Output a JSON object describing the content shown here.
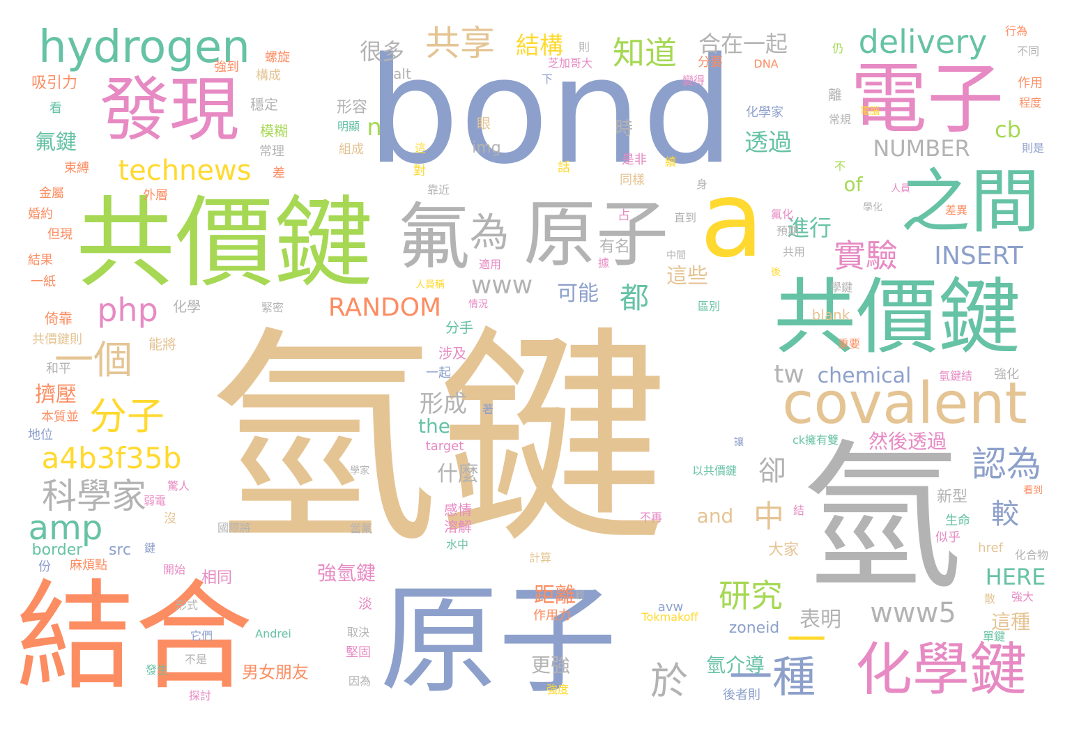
{
  "palette": {
    "tan": "#e5c494",
    "blue": "#8da0cb",
    "orange": "#fc8d62",
    "green": "#66c2a5",
    "pink": "#e78ac3",
    "lime": "#a6d854",
    "yellow": "#ffd92f",
    "gray": "#b3b3b3"
  },
  "words": [
    {
      "text": "氫鍵",
      "color": "tan"
    },
    {
      "text": "bond",
      "color": "blue"
    },
    {
      "text": "原子",
      "color": "blue"
    },
    {
      "text": "氫",
      "color": "gray"
    },
    {
      "text": "共價鍵",
      "color": "lime"
    },
    {
      "text": "共價鍵",
      "color": "green"
    },
    {
      "text": "結合",
      "color": "orange"
    },
    {
      "text": "a",
      "color": "yellow"
    },
    {
      "text": "原子",
      "color": "gray"
    },
    {
      "text": "氟",
      "color": "gray"
    },
    {
      "text": "電子",
      "color": "pink"
    },
    {
      "text": "發現",
      "color": "pink"
    },
    {
      "text": "之間",
      "color": "green"
    },
    {
      "text": "化學鍵",
      "color": "pink"
    },
    {
      "text": "covalent",
      "color": "tan"
    },
    {
      "text": "hydrogen",
      "color": "green"
    },
    {
      "text": "一種",
      "color": "blue"
    },
    {
      "text": "一",
      "color": "yellow"
    },
    {
      "text": "為",
      "color": "gray"
    },
    {
      "text": "一個",
      "color": "tan"
    },
    {
      "text": "分子",
      "color": "yellow"
    },
    {
      "text": "科學家",
      "color": "gray"
    },
    {
      "text": "amp",
      "color": "green"
    },
    {
      "text": "technews",
      "color": "yellow"
    },
    {
      "text": "php",
      "color": "pink"
    },
    {
      "text": "a4b3f35b",
      "color": "yellow"
    },
    {
      "text": "共享",
      "color": "tan"
    },
    {
      "text": "知道",
      "color": "lime"
    },
    {
      "text": "delivery",
      "color": "green"
    },
    {
      "text": "實驗",
      "color": "pink"
    },
    {
      "text": "認為",
      "color": "blue"
    },
    {
      "text": "研究",
      "color": "lime"
    },
    {
      "text": "於",
      "color": "gray"
    },
    {
      "text": "www5",
      "color": "gray"
    },
    {
      "text": "RANDOM",
      "color": "orange"
    },
    {
      "text": "INSERT",
      "color": "blue"
    },
    {
      "text": "NUMBER",
      "color": "gray"
    },
    {
      "text": "www",
      "color": "gray"
    },
    {
      "text": "中",
      "color": "tan"
    },
    {
      "text": "卻",
      "color": "gray"
    },
    {
      "text": "較",
      "color": "blue"
    },
    {
      "text": "都",
      "color": "green"
    },
    {
      "text": "tw",
      "color": "gray"
    },
    {
      "text": "chemical",
      "color": "blue"
    },
    {
      "text": "cb",
      "color": "lime"
    },
    {
      "text": "n",
      "color": "lime"
    },
    {
      "text": "透過",
      "color": "green"
    },
    {
      "text": "進行",
      "color": "green"
    },
    {
      "text": "結構",
      "color": "yellow"
    },
    {
      "text": "很多",
      "color": "gray"
    },
    {
      "text": "合在一起",
      "color": "gray"
    },
    {
      "text": "形成",
      "color": "gray"
    },
    {
      "text": "可能",
      "color": "blue"
    },
    {
      "text": "這些",
      "color": "tan"
    },
    {
      "text": "氟鍵",
      "color": "green"
    },
    {
      "text": "擠壓",
      "color": "orange"
    },
    {
      "text": "the",
      "color": "green"
    },
    {
      "text": "of",
      "color": "lime"
    },
    {
      "text": "然後透過",
      "color": "pink"
    },
    {
      "text": "什麼",
      "color": "gray"
    },
    {
      "text": "HERE",
      "color": "green"
    },
    {
      "text": "表明",
      "color": "gray"
    },
    {
      "text": "距離",
      "color": "orange"
    },
    {
      "text": "強氫鍵",
      "color": "pink"
    },
    {
      "text": "氫介導",
      "color": "green"
    },
    {
      "text": "更強",
      "color": "gray"
    },
    {
      "text": "男女朋友",
      "color": "orange"
    },
    {
      "text": "這種",
      "color": "tan"
    },
    {
      "text": "zoneid",
      "color": "blue"
    },
    {
      "text": "and",
      "color": "tan"
    },
    {
      "text": "新型",
      "color": "gray"
    },
    {
      "text": "border",
      "color": "green"
    },
    {
      "text": "src",
      "color": "blue"
    },
    {
      "text": "大家",
      "color": "tan"
    },
    {
      "text": "相同",
      "color": "pink"
    },
    {
      "text": "時",
      "color": "gray"
    },
    {
      "text": "形容",
      "color": "gray"
    },
    {
      "text": "模糊",
      "color": "lime"
    },
    {
      "text": "穩定",
      "color": "gray"
    },
    {
      "text": "吸引力",
      "color": "orange"
    },
    {
      "text": "img",
      "color": "gray"
    },
    {
      "text": "alt",
      "color": "gray"
    },
    {
      "text": "化學家",
      "color": "blue"
    },
    {
      "text": "組成",
      "color": "tan"
    },
    {
      "text": "是非",
      "color": "pink"
    },
    {
      "text": "同樣",
      "color": "tan"
    },
    {
      "text": "有名",
      "color": "gray"
    },
    {
      "text": "感情",
      "color": "pink"
    },
    {
      "text": "溶解",
      "color": "pink"
    },
    {
      "text": "分手",
      "color": "green"
    },
    {
      "text": "涉及",
      "color": "pink"
    },
    {
      "text": "一起",
      "color": "blue"
    },
    {
      "text": "化學",
      "color": "gray"
    },
    {
      "text": "倚靠",
      "color": "orange"
    },
    {
      "text": "能將",
      "color": "tan"
    },
    {
      "text": "本質並",
      "color": "orange"
    },
    {
      "text": "地位",
      "color": "blue"
    },
    {
      "text": "共價鍵則",
      "color": "tan"
    },
    {
      "text": "和平",
      "color": "gray"
    },
    {
      "text": "結果",
      "color": "orange"
    },
    {
      "text": "婚約",
      "color": "orange"
    },
    {
      "text": "金屬",
      "color": "orange"
    },
    {
      "text": "外層",
      "color": "orange"
    },
    {
      "text": "但現",
      "color": "orange"
    },
    {
      "text": "一紙",
      "color": "orange"
    },
    {
      "text": "束縛",
      "color": "orange"
    },
    {
      "text": "差",
      "color": "orange"
    },
    {
      "text": "看",
      "color": "green"
    },
    {
      "text": "常理",
      "color": "gray"
    },
    {
      "text": "構成",
      "color": "tan"
    },
    {
      "text": "強到",
      "color": "orange"
    },
    {
      "text": "螺旋",
      "color": "orange"
    },
    {
      "text": "則",
      "color": "gray"
    },
    {
      "text": "芝加哥大",
      "color": "pink"
    },
    {
      "text": "下",
      "color": "blue"
    },
    {
      "text": "分要",
      "color": "orange"
    },
    {
      "text": "DNA",
      "color": "orange"
    },
    {
      "text": "變得",
      "color": "pink"
    },
    {
      "text": "仍",
      "color": "lime"
    },
    {
      "text": "明顯",
      "color": "green"
    },
    {
      "text": "眼",
      "color": "tan"
    },
    {
      "text": "這",
      "color": "yellow"
    },
    {
      "text": "對",
      "color": "yellow"
    },
    {
      "text": "話",
      "color": "yellow"
    },
    {
      "text": "續",
      "color": "yellow"
    },
    {
      "text": "身",
      "color": "gray"
    },
    {
      "text": "靠近",
      "color": "gray"
    },
    {
      "text": "不",
      "color": "lime"
    },
    {
      "text": "離",
      "color": "gray"
    },
    {
      "text": "常規",
      "color": "gray"
    },
    {
      "text": "電腦",
      "color": "yellow"
    },
    {
      "text": "行為",
      "color": "orange"
    },
    {
      "text": "不同",
      "color": "gray"
    },
    {
      "text": "作用",
      "color": "orange"
    },
    {
      "text": "程度",
      "color": "orange"
    },
    {
      "text": "則是",
      "color": "blue"
    },
    {
      "text": "人員",
      "color": "pink"
    },
    {
      "text": "學化",
      "color": "gray"
    },
    {
      "text": "差異",
      "color": "orange"
    },
    {
      "text": "氟化",
      "color": "pink"
    },
    {
      "text": "預期",
      "color": "gray"
    },
    {
      "text": "共用",
      "color": "gray"
    },
    {
      "text": "後",
      "color": "yellow"
    },
    {
      "text": "直到",
      "color": "gray"
    },
    {
      "text": "占",
      "color": "pink"
    },
    {
      "text": "據",
      "color": "pink"
    },
    {
      "text": "適用",
      "color": "pink"
    },
    {
      "text": "中間",
      "color": "gray"
    },
    {
      "text": "人員稱",
      "color": "yellow"
    },
    {
      "text": "情況",
      "color": "pink"
    },
    {
      "text": "緊密",
      "color": "gray"
    },
    {
      "text": "區別",
      "color": "green"
    },
    {
      "text": "學鍵",
      "color": "gray"
    },
    {
      "text": "blank",
      "color": "tan"
    },
    {
      "text": "重要",
      "color": "orange"
    },
    {
      "text": "氫鍵結",
      "color": "pink"
    },
    {
      "text": "強化",
      "color": "gray"
    },
    {
      "text": "ck擁有雙",
      "color": "green"
    },
    {
      "text": "讓",
      "color": "blue"
    },
    {
      "text": "target",
      "color": "pink"
    },
    {
      "text": "著",
      "color": "blue"
    },
    {
      "text": "學家",
      "color": "gray"
    },
    {
      "text": "以共價鍵",
      "color": "green"
    },
    {
      "text": "結",
      "color": "pink"
    },
    {
      "text": "不再",
      "color": "pink"
    },
    {
      "text": "看到",
      "color": "orange"
    },
    {
      "text": "生命",
      "color": "green"
    },
    {
      "text": "似乎",
      "color": "pink"
    },
    {
      "text": "href",
      "color": "tan"
    },
    {
      "text": "化合物",
      "color": "gray"
    },
    {
      "text": "驚人",
      "color": "pink"
    },
    {
      "text": "弱電",
      "color": "pink"
    },
    {
      "text": "沒",
      "color": "tan"
    },
    {
      "text": "國際將",
      "color": "gray"
    },
    {
      "text": "當氟",
      "color": "gray"
    },
    {
      "text": "水中",
      "color": "green"
    },
    {
      "text": "鍵",
      "color": "blue"
    },
    {
      "text": "麻煩點",
      "color": "orange"
    },
    {
      "text": "份",
      "color": "blue"
    },
    {
      "text": "開始",
      "color": "pink"
    },
    {
      "text": "計算",
      "color": "tan"
    },
    {
      "text": "淡",
      "color": "pink"
    },
    {
      "text": "作用力",
      "color": "orange"
    },
    {
      "text": "輕",
      "color": "gray"
    },
    {
      "text": "avw",
      "color": "blue"
    },
    {
      "text": "Tokmakoff",
      "color": "yellow"
    },
    {
      "text": "散",
      "color": "tan"
    },
    {
      "text": "強大",
      "color": "pink"
    },
    {
      "text": "形式",
      "color": "gray"
    },
    {
      "text": "它們",
      "color": "blue"
    },
    {
      "text": "Andrei",
      "color": "green"
    },
    {
      "text": "取決",
      "color": "gray"
    },
    {
      "text": "堅固",
      "color": "pink"
    },
    {
      "text": "單鍵",
      "color": "green"
    },
    {
      "text": "不是",
      "color": "gray"
    },
    {
      "text": "發生",
      "color": "green"
    },
    {
      "text": "探討",
      "color": "pink"
    },
    {
      "text": "因為",
      "color": "gray"
    },
    {
      "text": "強度",
      "color": "yellow"
    },
    {
      "text": "後者則",
      "color": "blue"
    }
  ]
}
